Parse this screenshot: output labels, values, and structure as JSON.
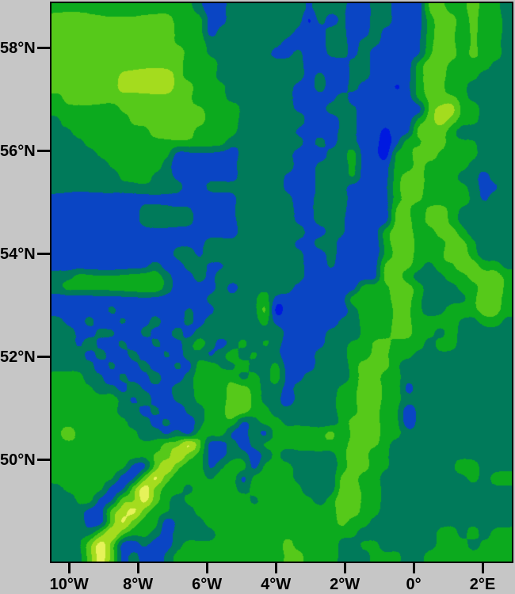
{
  "figure": {
    "background_color": "#c6c6c6",
    "frame_color": "#000000",
    "tick_color": "#000000",
    "label_color": "#000000"
  },
  "chart_data": {
    "type": "heatmap",
    "subtype": "filled-contour-map",
    "title": "",
    "xlabel": "",
    "ylabel": "",
    "legend": "none visible",
    "x_axis": {
      "ticks": [
        {
          "label": "10°W",
          "lon": -10
        },
        {
          "label": "8°W",
          "lon": -8
        },
        {
          "label": "6°W",
          "lon": -6
        },
        {
          "label": "4°W",
          "lon": -4
        },
        {
          "label": "2°W",
          "lon": -2
        },
        {
          "label": "0°",
          "lon": 0
        },
        {
          "label": "2°E",
          "lon": 2
        }
      ],
      "lon_min": -10.51,
      "lon_max": 2.85
    },
    "y_axis": {
      "ticks": [
        {
          "label": "50°N",
          "lat": 50
        },
        {
          "label": "52°N",
          "lat": 52
        },
        {
          "label": "54°N",
          "lat": 54
        },
        {
          "label": "56°N",
          "lat": 56
        },
        {
          "label": "58°N",
          "lat": 58
        }
      ],
      "lat_min": 48.03,
      "lat_max": 58.87
    },
    "levels": {
      "order": "low-to-high",
      "colors": [
        "#0019e0",
        "#0a45c4",
        "#007a5a",
        "#0caa1e",
        "#56c91a",
        "#a4dc1e",
        "#e6f25a"
      ]
    },
    "grid_cols": 42,
    "grid_rows": 50,
    "grid": [
      "333333333333321122222221222112211144334332",
      "444444444443331122222220212112211134434332",
      "444444444443331222222211122112111134434332",
      "444444444443332222222111122122111134434332",
      "444444444444332222221121122121111134434332",
      "444444444444333222222221111221111344333322",
      "444444555554333222222221211221111344333222",
      "444444555554433322222211211211101344332222",
      "344444444444433322222211112111111344432222",
      "333333444444443332222211122211111145533222",
      "233333344444443332222221112211111345433222",
      "223333333444433332222211112211011444322222",
      "222333333333333322222221212211013344333222",
      "222233333331111112222211122311033443333222",
      "222223333321111112222211222311133433332222",
      "222222333221111112222111222311134433322122",
      "222222222222112222222111222111134433332112",
      "111111111111111112222211222111134433332122",
      "111111112222211112222211222111144344322222",
      "111111112222211112222211222111144344322222",
      "111111111111111112222221122111344334432222",
      "111111111111112222222211221111344333443222",
      "111111111112212222222221121111344333443222",
      "111111111211221122222221121111444323344332",
      "223333333321121222222221111111443222334443",
      "233333333321111212222211111133344322233443",
      "111111111111112222231111111333344322223443",
      "111112111111211222240111111233344322333443",
      "211211211211212222231111112233344333322332",
      "221122112112122222222111122233344332322222",
      "221211211211232123232111122334433323322222",
      "222121121121221232322111222334433222222222",
      "222212112112133223223111222344432222222222",
      "333221211211233332323112222344332222222222",
      "333322121112233344322122223344331222222222",
      "333333212112233344322122223344332222222222",
      "333333221211223344332222223344331222222222",
      "333333322121123331233222223444331222222222",
      "343333332212133311213333343444332222222222",
      "333333333344641121233333333444322222222222",
      "333333333446431122123222223443322222222222",
      "333333311464331233133322223443322222233222",
      "333333114643332331333322224433222222223233",
      "233331146433233332333332224433222222222222",
      "223311446432333333233333234433222222222222",
      "222114564332233333333333334433222222222222",
      "222114643312223333333333334332222222222222",
      "222246433212222333333333333322222223323233",
      "222464112112333333333433332233222223332333",
      "222464121123333333333443332223332233333333"
    ]
  }
}
